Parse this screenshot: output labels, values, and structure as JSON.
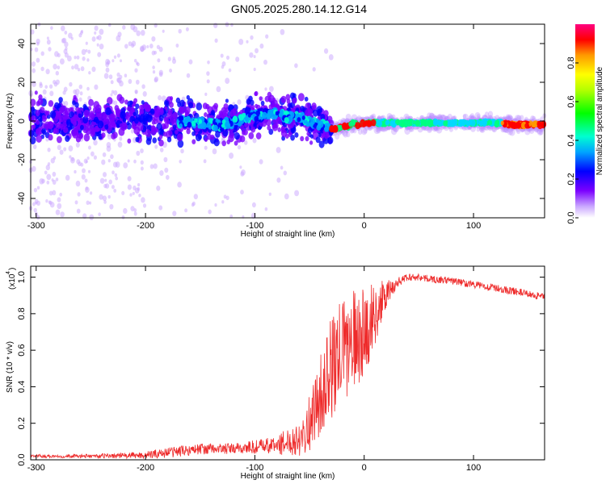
{
  "title": "GN05.2025.280.14.12.G14",
  "colors": {
    "snr_line": "#ee2b2b",
    "axis": "#000000",
    "background": "#ffffff"
  },
  "chart_data": [
    {
      "type": "heatmap",
      "name": "spectrogram",
      "xlabel": "Height of straight line (km)",
      "ylabel": "Frequency (Hz)",
      "xlim": [
        -305,
        165
      ],
      "ylim": [
        -50,
        50
      ],
      "xticks": [
        -300,
        -200,
        -100,
        0,
        100
      ],
      "yticks": [
        -40,
        -20,
        0,
        20,
        40
      ],
      "ridge": {
        "x": [
          -305,
          -280,
          -250,
          -220,
          -200,
          -180,
          -150,
          -130,
          -115,
          -100,
          -90,
          -80,
          -70,
          -60,
          -50,
          -40,
          -35,
          -30,
          -25,
          -20,
          -15,
          -10,
          -5,
          0,
          10,
          20,
          40,
          60,
          80,
          100,
          120,
          140,
          160,
          165
        ],
        "frequency_hz": [
          1,
          1,
          0,
          1,
          1,
          0,
          -1,
          -2,
          0,
          3,
          3,
          4,
          2,
          2,
          0,
          -2,
          -3,
          -4,
          -4,
          -3,
          -3,
          -1,
          -2,
          -1,
          -1,
          -1,
          -1,
          -1,
          -1,
          -1,
          -1,
          -2,
          -2,
          -2
        ]
      },
      "colorbar": {
        "label": "Normalized spectral amplitude",
        "range": [
          0.0,
          1.0
        ],
        "ticks": [
          "0.0",
          "0.2",
          "0.4",
          "0.6",
          "0.8"
        ]
      }
    },
    {
      "type": "line",
      "name": "snr",
      "xlabel": "Height of straight line (km)",
      "ylabel": "SNR (10 * v/v)",
      "y_scale_note": "(x10",
      "y_scale_exponent": "4",
      "xlim": [
        -305,
        165
      ],
      "ylim": [
        0,
        1.06
      ],
      "xticks": [
        -300,
        -200,
        -100,
        0,
        100
      ],
      "yticks": [
        "0.0",
        "0.2",
        "0.4",
        "0.6",
        "0.8",
        "1.0"
      ],
      "series": [
        {
          "name": "SNR",
          "x": [
            -305,
            -250,
            -200,
            -180,
            -150,
            -120,
            -100,
            -80,
            -60,
            -50,
            -40,
            -30,
            -20,
            -10,
            0,
            10,
            20,
            30,
            40,
            50,
            60,
            80,
            100,
            120,
            140,
            165
          ],
          "values": [
            0.02,
            0.02,
            0.025,
            0.04,
            0.06,
            0.06,
            0.07,
            0.08,
            0.12,
            0.2,
            0.35,
            0.5,
            0.6,
            0.65,
            0.7,
            0.8,
            0.9,
            0.97,
            1.0,
            1.0,
            0.99,
            0.98,
            0.96,
            0.94,
            0.92,
            0.89
          ],
          "noise_amplitude": [
            0.01,
            0.01,
            0.02,
            0.03,
            0.03,
            0.03,
            0.04,
            0.05,
            0.1,
            0.15,
            0.22,
            0.28,
            0.3,
            0.28,
            0.25,
            0.18,
            0.08,
            0.03,
            0.02,
            0.02,
            0.02,
            0.02,
            0.02,
            0.02,
            0.02,
            0.02
          ]
        }
      ]
    }
  ]
}
